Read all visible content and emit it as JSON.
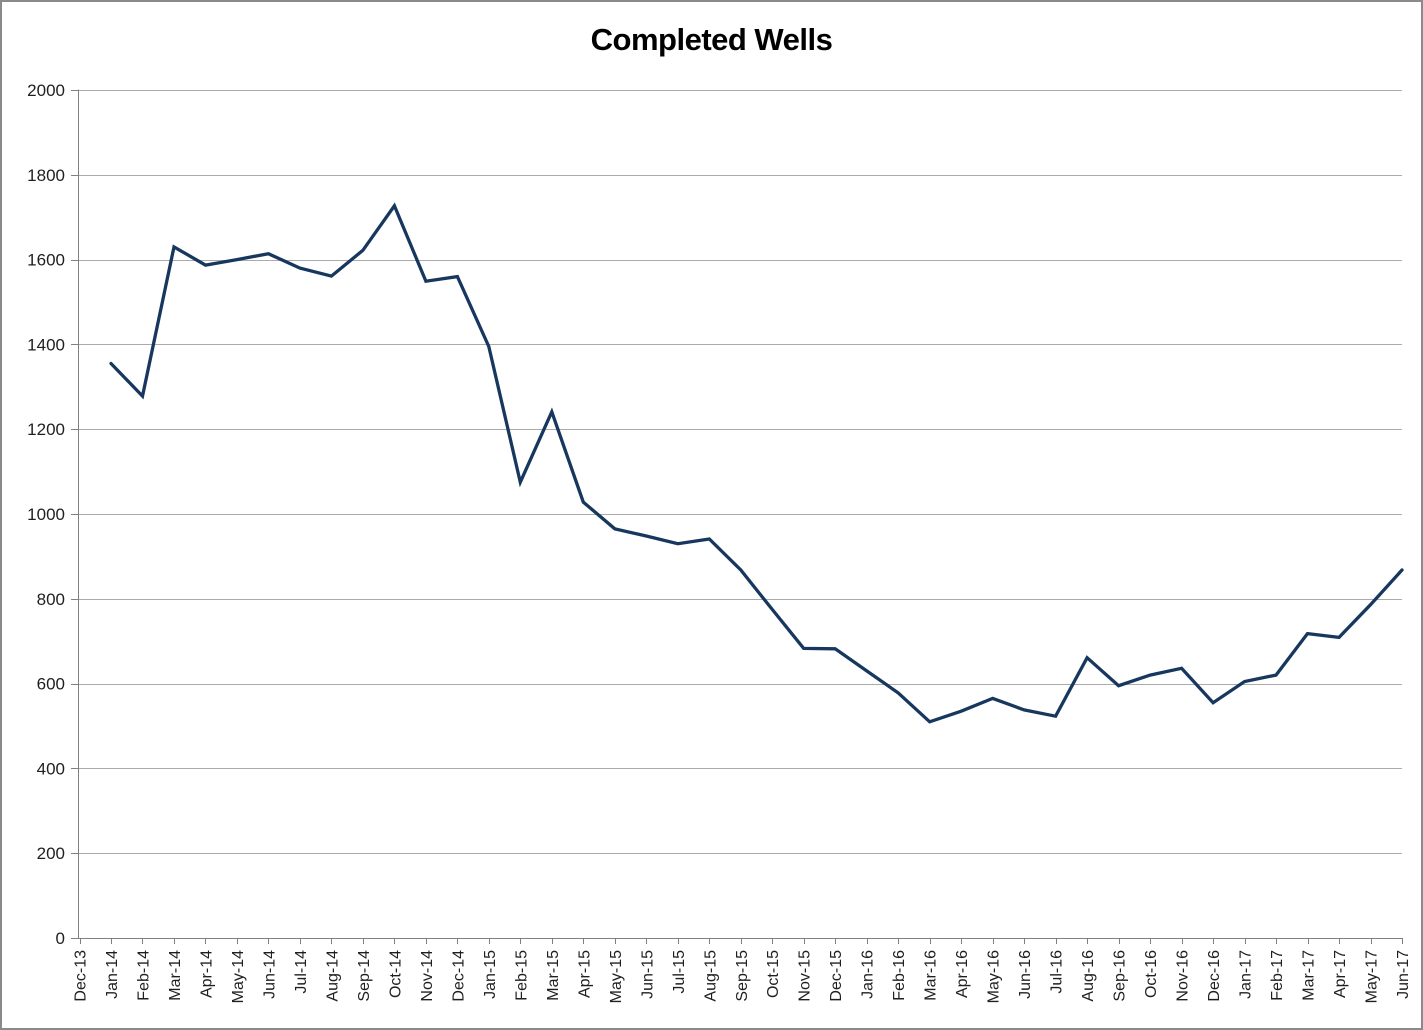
{
  "window": {
    "background_color": "#FFFFFF",
    "border_color": "#8A8A8A"
  },
  "chart_data": {
    "type": "line",
    "title": "Completed Wells",
    "xlabel": "",
    "ylabel": "",
    "ylim": [
      0,
      2000
    ],
    "ytick_interval": 200,
    "yticks": [
      0,
      200,
      400,
      600,
      800,
      1000,
      1200,
      1400,
      1600,
      1800,
      2000
    ],
    "grid": true,
    "legend": "none",
    "x_label_rotation": -90,
    "categories": [
      "Dec-13",
      "Jan-14",
      "Feb-14",
      "Mar-14",
      "Apr-14",
      "May-14",
      "Jun-14",
      "Jul-14",
      "Aug-14",
      "Sep-14",
      "Oct-14",
      "Nov-14",
      "Dec-14",
      "Jan-15",
      "Feb-15",
      "Mar-15",
      "Apr-15",
      "May-15",
      "Jun-15",
      "Jul-15",
      "Aug-15",
      "Sep-15",
      "Oct-15",
      "Nov-15",
      "Dec-15",
      "Jan-16",
      "Feb-16",
      "Mar-16",
      "Apr-16",
      "May-16",
      "Jun-16",
      "Jul-16",
      "Aug-16",
      "Sep-16",
      "Oct-16",
      "Nov-16",
      "Dec-16",
      "Jan-17",
      "Feb-17",
      "Mar-17",
      "Apr-17",
      "May-17",
      "Jun-17"
    ],
    "series": [
      {
        "name": "Completed Wells",
        "color": "#17375E",
        "values": [
          null,
          1355,
          1278,
          1630,
          1587,
          1600,
          1614,
          1580,
          1561,
          1622,
          1727,
          1549,
          1560,
          1395,
          1075,
          1241,
          1028,
          965,
          948,
          930,
          941,
          868,
          775,
          683,
          682,
          630,
          578,
          510,
          535,
          565,
          538,
          523,
          661,
          595,
          620,
          636,
          555,
          605,
          620,
          718,
          709,
          786,
          868
        ]
      }
    ],
    "colors": {
      "gridline": "#ABABAB",
      "axis": "#808080",
      "tick_label": "#1F1F1F",
      "title": "#000000"
    }
  }
}
